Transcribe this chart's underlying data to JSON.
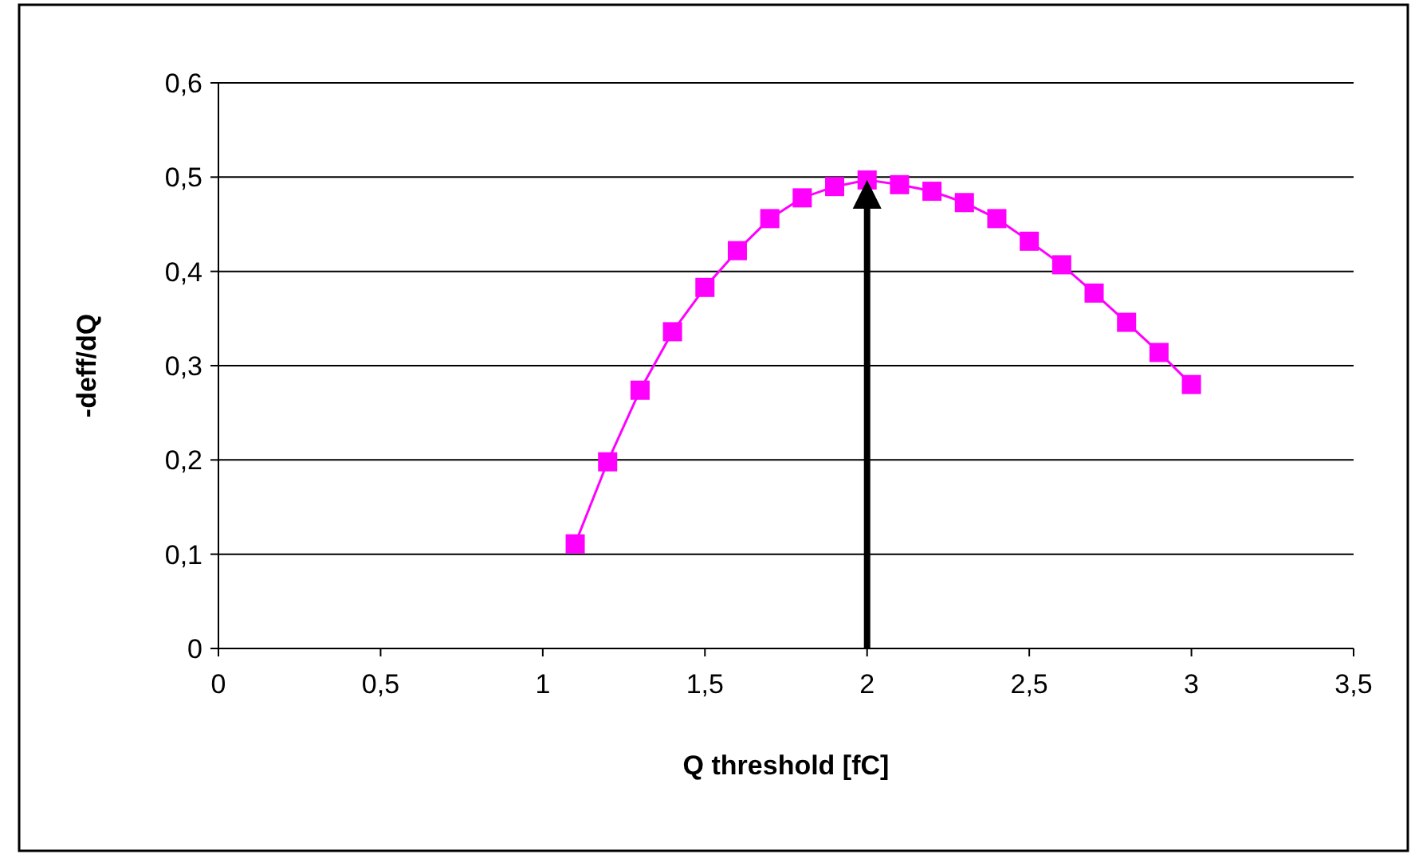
{
  "chart_data": {
    "type": "line",
    "xlabel": "Q threshold [fC]",
    "ylabel": "-deff/dQ",
    "x": [
      1.1,
      1.2,
      1.3,
      1.4,
      1.5,
      1.6,
      1.7,
      1.8,
      1.9,
      2.0,
      2.1,
      2.2,
      2.3,
      2.4,
      2.5,
      2.6,
      2.7,
      2.8,
      2.9,
      3.0
    ],
    "series": [
      {
        "color": "#ff00ff",
        "values": [
          0.111,
          0.198,
          0.274,
          0.336,
          0.383,
          0.422,
          0.456,
          0.478,
          0.49,
          0.497,
          0.492,
          0.485,
          0.473,
          0.456,
          0.432,
          0.407,
          0.377,
          0.346,
          0.314,
          0.28
        ]
      }
    ],
    "xlim": [
      0,
      3.5
    ],
    "xticks": [
      0,
      {
        "value": 0.5,
        "label": "0,5"
      },
      1,
      {
        "value": 1.5,
        "label": "1,5"
      },
      2,
      {
        "value": 2.5,
        "label": "2,5"
      },
      3,
      {
        "value": 3.5,
        "label": "3,5"
      }
    ],
    "ylim": [
      0,
      0.6
    ],
    "yticks": [
      0,
      {
        "value": 0.1,
        "label": "0,1"
      },
      {
        "value": 0.2,
        "label": "0,2"
      },
      {
        "value": 0.3,
        "label": "0,3"
      },
      {
        "value": 0.4,
        "label": "0,4"
      },
      {
        "value": 0.5,
        "label": "0,5"
      },
      {
        "value": 0.6,
        "label": "0,6"
      }
    ],
    "grid": "y",
    "marker": "square",
    "line_style": "solid"
  }
}
